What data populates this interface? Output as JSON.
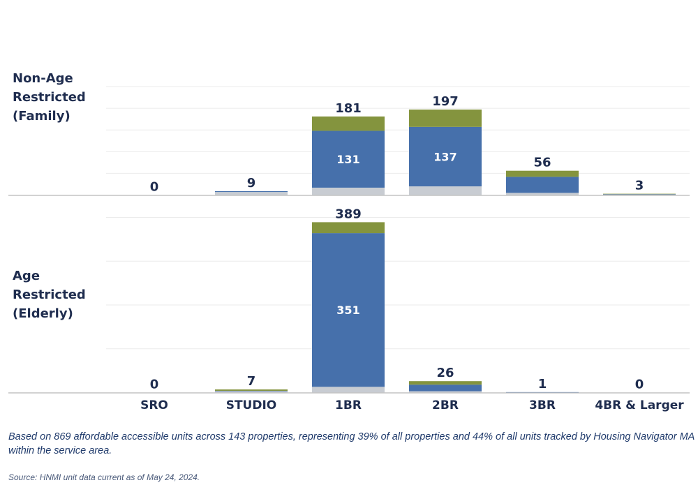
{
  "colors": {
    "top_segment": "#84943e",
    "middle_segment": "#4670ab",
    "bottom_segment": "#c8ccd2",
    "text": "#1f2d4f",
    "gridline": "#ebebeb",
    "axis": "#c4c4c4"
  },
  "rows": [
    {
      "label_lines": [
        "Non-Age",
        "Restricted",
        "(Family)"
      ]
    },
    {
      "label_lines": [
        "Age",
        "Restricted",
        "(Elderly)"
      ]
    }
  ],
  "footnote": "Based on 869 affordable accessible units across 143 properties, representing 39% of all properties and 44% of all units tracked by Housing Navigator MA within the service area.",
  "source": "Source: HNMI unit data current as of May 24, 2024.",
  "chart_data": {
    "type": "bar",
    "stacked": true,
    "categories": [
      "SRO",
      "STUDIO",
      "1BR",
      "2BR",
      "3BR",
      "4BR & Larger"
    ],
    "grid": true,
    "panels": [
      {
        "row_label": "Non-Age Restricted (Family)",
        "ylim": [
          0,
          250
        ],
        "gridlines": [
          50,
          100,
          150,
          200,
          250
        ],
        "totals": [
          0,
          9,
          181,
          197,
          56,
          3
        ],
        "series": [
          {
            "color": "#c8ccd2",
            "values": [
              0,
              7,
              17,
              20,
              5,
              1
            ]
          },
          {
            "color": "#4670ab",
            "values": [
              0,
              2,
              131,
              137,
              37,
              1
            ]
          },
          {
            "color": "#84943e",
            "values": [
              0,
              0,
              33,
              40,
              14,
              1
            ]
          }
        ],
        "inner_labels": [
          null,
          null,
          "131",
          "137",
          null,
          null
        ]
      },
      {
        "row_label": "Age Restricted (Elderly)",
        "ylim": [
          0,
          400
        ],
        "gridlines": [
          100,
          200,
          300,
          400
        ],
        "totals": [
          0,
          7,
          389,
          26,
          1,
          0
        ],
        "series": [
          {
            "color": "#c8ccd2",
            "values": [
              0,
              3,
              13,
              3,
              0,
              0
            ]
          },
          {
            "color": "#4670ab",
            "values": [
              0,
              1,
              351,
              15,
              1,
              0
            ]
          },
          {
            "color": "#84943e",
            "values": [
              0,
              3,
              25,
              8,
              0,
              0
            ]
          }
        ],
        "inner_labels": [
          null,
          null,
          "351",
          null,
          null,
          null
        ]
      }
    ]
  }
}
